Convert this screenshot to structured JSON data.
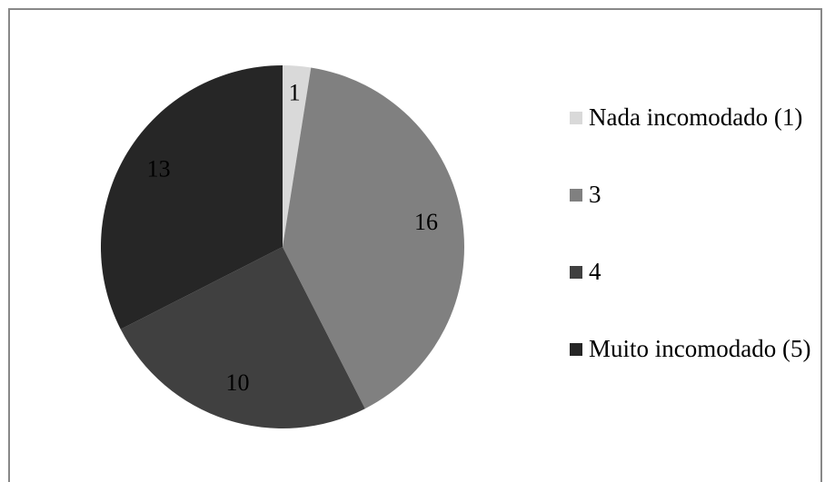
{
  "chart_data": {
    "type": "pie",
    "categories": [
      "Nada incomodado (1)",
      "3",
      "4",
      "Muito incomodado (5)"
    ],
    "values": [
      1,
      16,
      10,
      13
    ],
    "colors": [
      "#d9d9d9",
      "#808080",
      "#404040",
      "#262626"
    ],
    "legend": "right"
  }
}
